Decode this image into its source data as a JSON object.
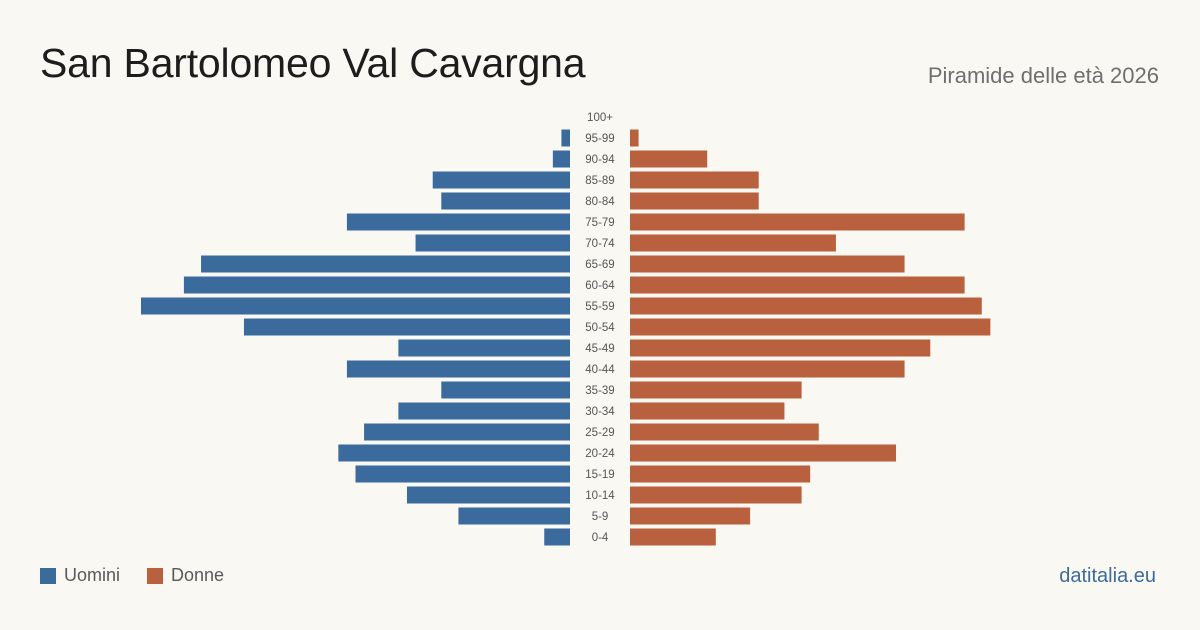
{
  "header": {
    "title": "San Bartolomeo  Val Cavargna",
    "subtitle": "Piramide delle età 2026"
  },
  "legend": {
    "male_label": "Uomini",
    "female_label": "Donne"
  },
  "brand": "datitalia.eu",
  "colors": {
    "male": "#3b6a9c",
    "female": "#b9603e",
    "label": "#555555",
    "background": "#faf8f3"
  },
  "chart_data": {
    "type": "bar",
    "orientation": "horizontal-pyramid",
    "categories": [
      "100+",
      "95-99",
      "90-94",
      "85-89",
      "80-84",
      "75-79",
      "70-74",
      "65-69",
      "60-64",
      "55-59",
      "50-54",
      "45-49",
      "40-44",
      "35-39",
      "30-34",
      "25-29",
      "20-24",
      "15-19",
      "10-14",
      "5-9",
      "0-4"
    ],
    "series": [
      {
        "name": "Uomini",
        "values": [
          0,
          1,
          2,
          16,
          15,
          26,
          18,
          43,
          45,
          50,
          38,
          20,
          26,
          15,
          20,
          24,
          27,
          25,
          19,
          13,
          3
        ]
      },
      {
        "name": "Donne",
        "values": [
          0,
          1,
          9,
          15,
          15,
          39,
          24,
          32,
          39,
          41,
          42,
          35,
          32,
          20,
          18,
          22,
          31,
          21,
          20,
          14,
          10
        ]
      }
    ]
  }
}
